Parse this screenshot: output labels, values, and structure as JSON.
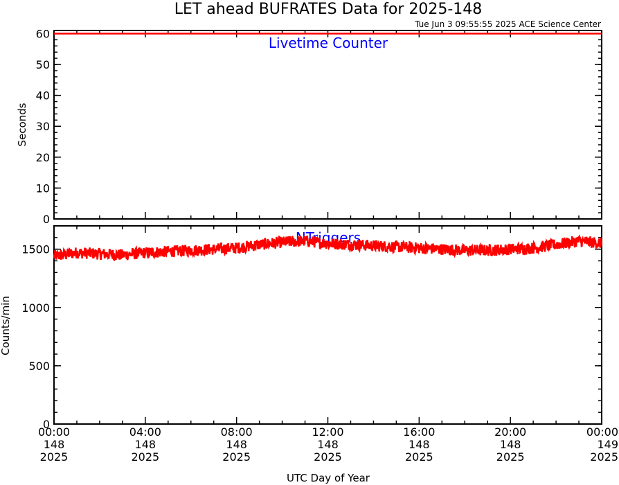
{
  "title": "LET ahead BUFRATES Data for 2025-148",
  "stamp": "Tue Jun  3 09:55:55 2025 ACE Science Center",
  "xlabel": "UTC Day of Year",
  "x_ticks": [
    {
      "time": "00:00",
      "doy": "148",
      "year": "2025",
      "hours": 0
    },
    {
      "time": "04:00",
      "doy": "148",
      "year": "2025",
      "hours": 4
    },
    {
      "time": "08:00",
      "doy": "148",
      "year": "2025",
      "hours": 8
    },
    {
      "time": "12:00",
      "doy": "148",
      "year": "2025",
      "hours": 12
    },
    {
      "time": "16:00",
      "doy": "148",
      "year": "2025",
      "hours": 16
    },
    {
      "time": "20:00",
      "doy": "148",
      "year": "2025",
      "hours": 20
    },
    {
      "time": "00:00",
      "doy": "149",
      "year": "2025",
      "hours": 24
    }
  ],
  "colors": {
    "data": "#ff0000",
    "label": "#0000ff",
    "axes": "#000000"
  },
  "chart_data": [
    {
      "type": "line",
      "ylabel": "Seconds",
      "ylim": [
        0,
        61
      ],
      "xlim_hours": [
        0,
        24
      ],
      "yticks": [
        0,
        10,
        20,
        30,
        40,
        50,
        60
      ],
      "series": [
        {
          "name": "Livetime Counter",
          "x_hours": [
            0,
            24
          ],
          "values": [
            60,
            60
          ]
        }
      ]
    },
    {
      "type": "line",
      "ylabel": "Counts/min",
      "ylim": [
        0,
        1700
      ],
      "xlim_hours": [
        0,
        24
      ],
      "yticks": [
        0,
        500,
        1000,
        1500
      ],
      "series": [
        {
          "name": "NTriggers",
          "x_hours": [
            0,
            1,
            2,
            3,
            4,
            5,
            6,
            7,
            8,
            9,
            10,
            11,
            12,
            13,
            14,
            15,
            16,
            17,
            18,
            19,
            20,
            21,
            22,
            23,
            24
          ],
          "values": [
            1440,
            1470,
            1460,
            1450,
            1470,
            1480,
            1490,
            1500,
            1510,
            1540,
            1560,
            1570,
            1550,
            1540,
            1530,
            1520,
            1510,
            1500,
            1490,
            1490,
            1500,
            1510,
            1540,
            1570,
            1550
          ],
          "noise_range": 50
        }
      ]
    }
  ]
}
